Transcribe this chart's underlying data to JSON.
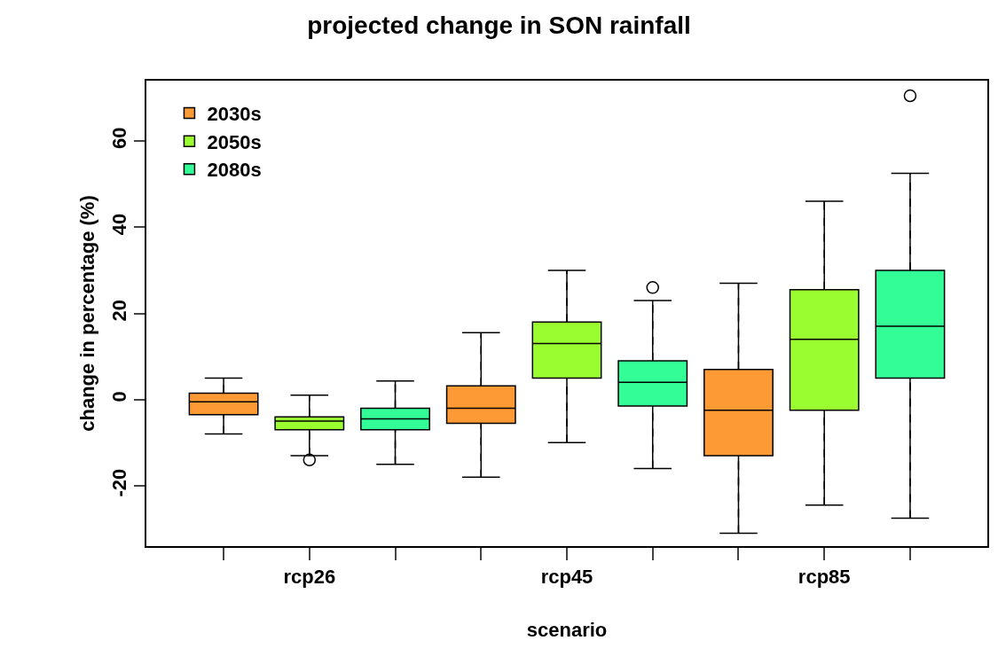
{
  "chart_data": {
    "type": "box",
    "title": "projected change in SON rainfall",
    "xlabel": "scenario",
    "ylabel": "change in percentage (%)",
    "categories": [
      null,
      "rcp26",
      null,
      null,
      "rcp45",
      null,
      null,
      "rcp85",
      null
    ],
    "ylim": [
      -34,
      74
    ],
    "yticks": [
      -20,
      0,
      20,
      40,
      60
    ],
    "legend": "top left",
    "marker": "circle",
    "line_style": "dashed",
    "series": [
      {
        "name": "2030s",
        "color": "#fd9a35",
        "boxes": [
          {
            "low": -8,
            "q1": -3.5,
            "median": -0.5,
            "q3": 1.5,
            "high": 5
          },
          null,
          null,
          {
            "low": -18,
            "q1": -5.5,
            "median": -2,
            "q3": 3.2,
            "high": 15.5
          },
          null,
          null,
          {
            "low": -31,
            "q1": -13,
            "median": -2.5,
            "q3": 7,
            "high": 27
          },
          null,
          null
        ]
      },
      {
        "name": "2050s",
        "color": "#9afd2f",
        "boxes": [
          null,
          {
            "low": -13,
            "q1": -7,
            "median": -5,
            "q3": -4,
            "high": 1,
            "outliers": [
              -14
            ]
          },
          null,
          null,
          {
            "low": -10,
            "q1": 5,
            "median": 13,
            "q3": 18,
            "high": 30
          },
          null,
          null,
          {
            "low": -24.5,
            "q1": -2.5,
            "median": 14,
            "q3": 25.5,
            "high": 46
          },
          null
        ]
      },
      {
        "name": "2080s",
        "color": "#33fd96",
        "boxes": [
          null,
          null,
          {
            "low": -15,
            "q1": -7,
            "median": -4.5,
            "q3": -2,
            "high": 4.3
          },
          null,
          null,
          {
            "low": -16,
            "q1": -1.5,
            "median": 4,
            "q3": 9,
            "high": 23,
            "outliers": [
              26
            ]
          },
          null,
          null,
          {
            "low": -27.5,
            "q1": 5,
            "median": 17,
            "q3": 30,
            "high": 52.5,
            "outliers": [
              70.5
            ]
          }
        ]
      }
    ]
  }
}
